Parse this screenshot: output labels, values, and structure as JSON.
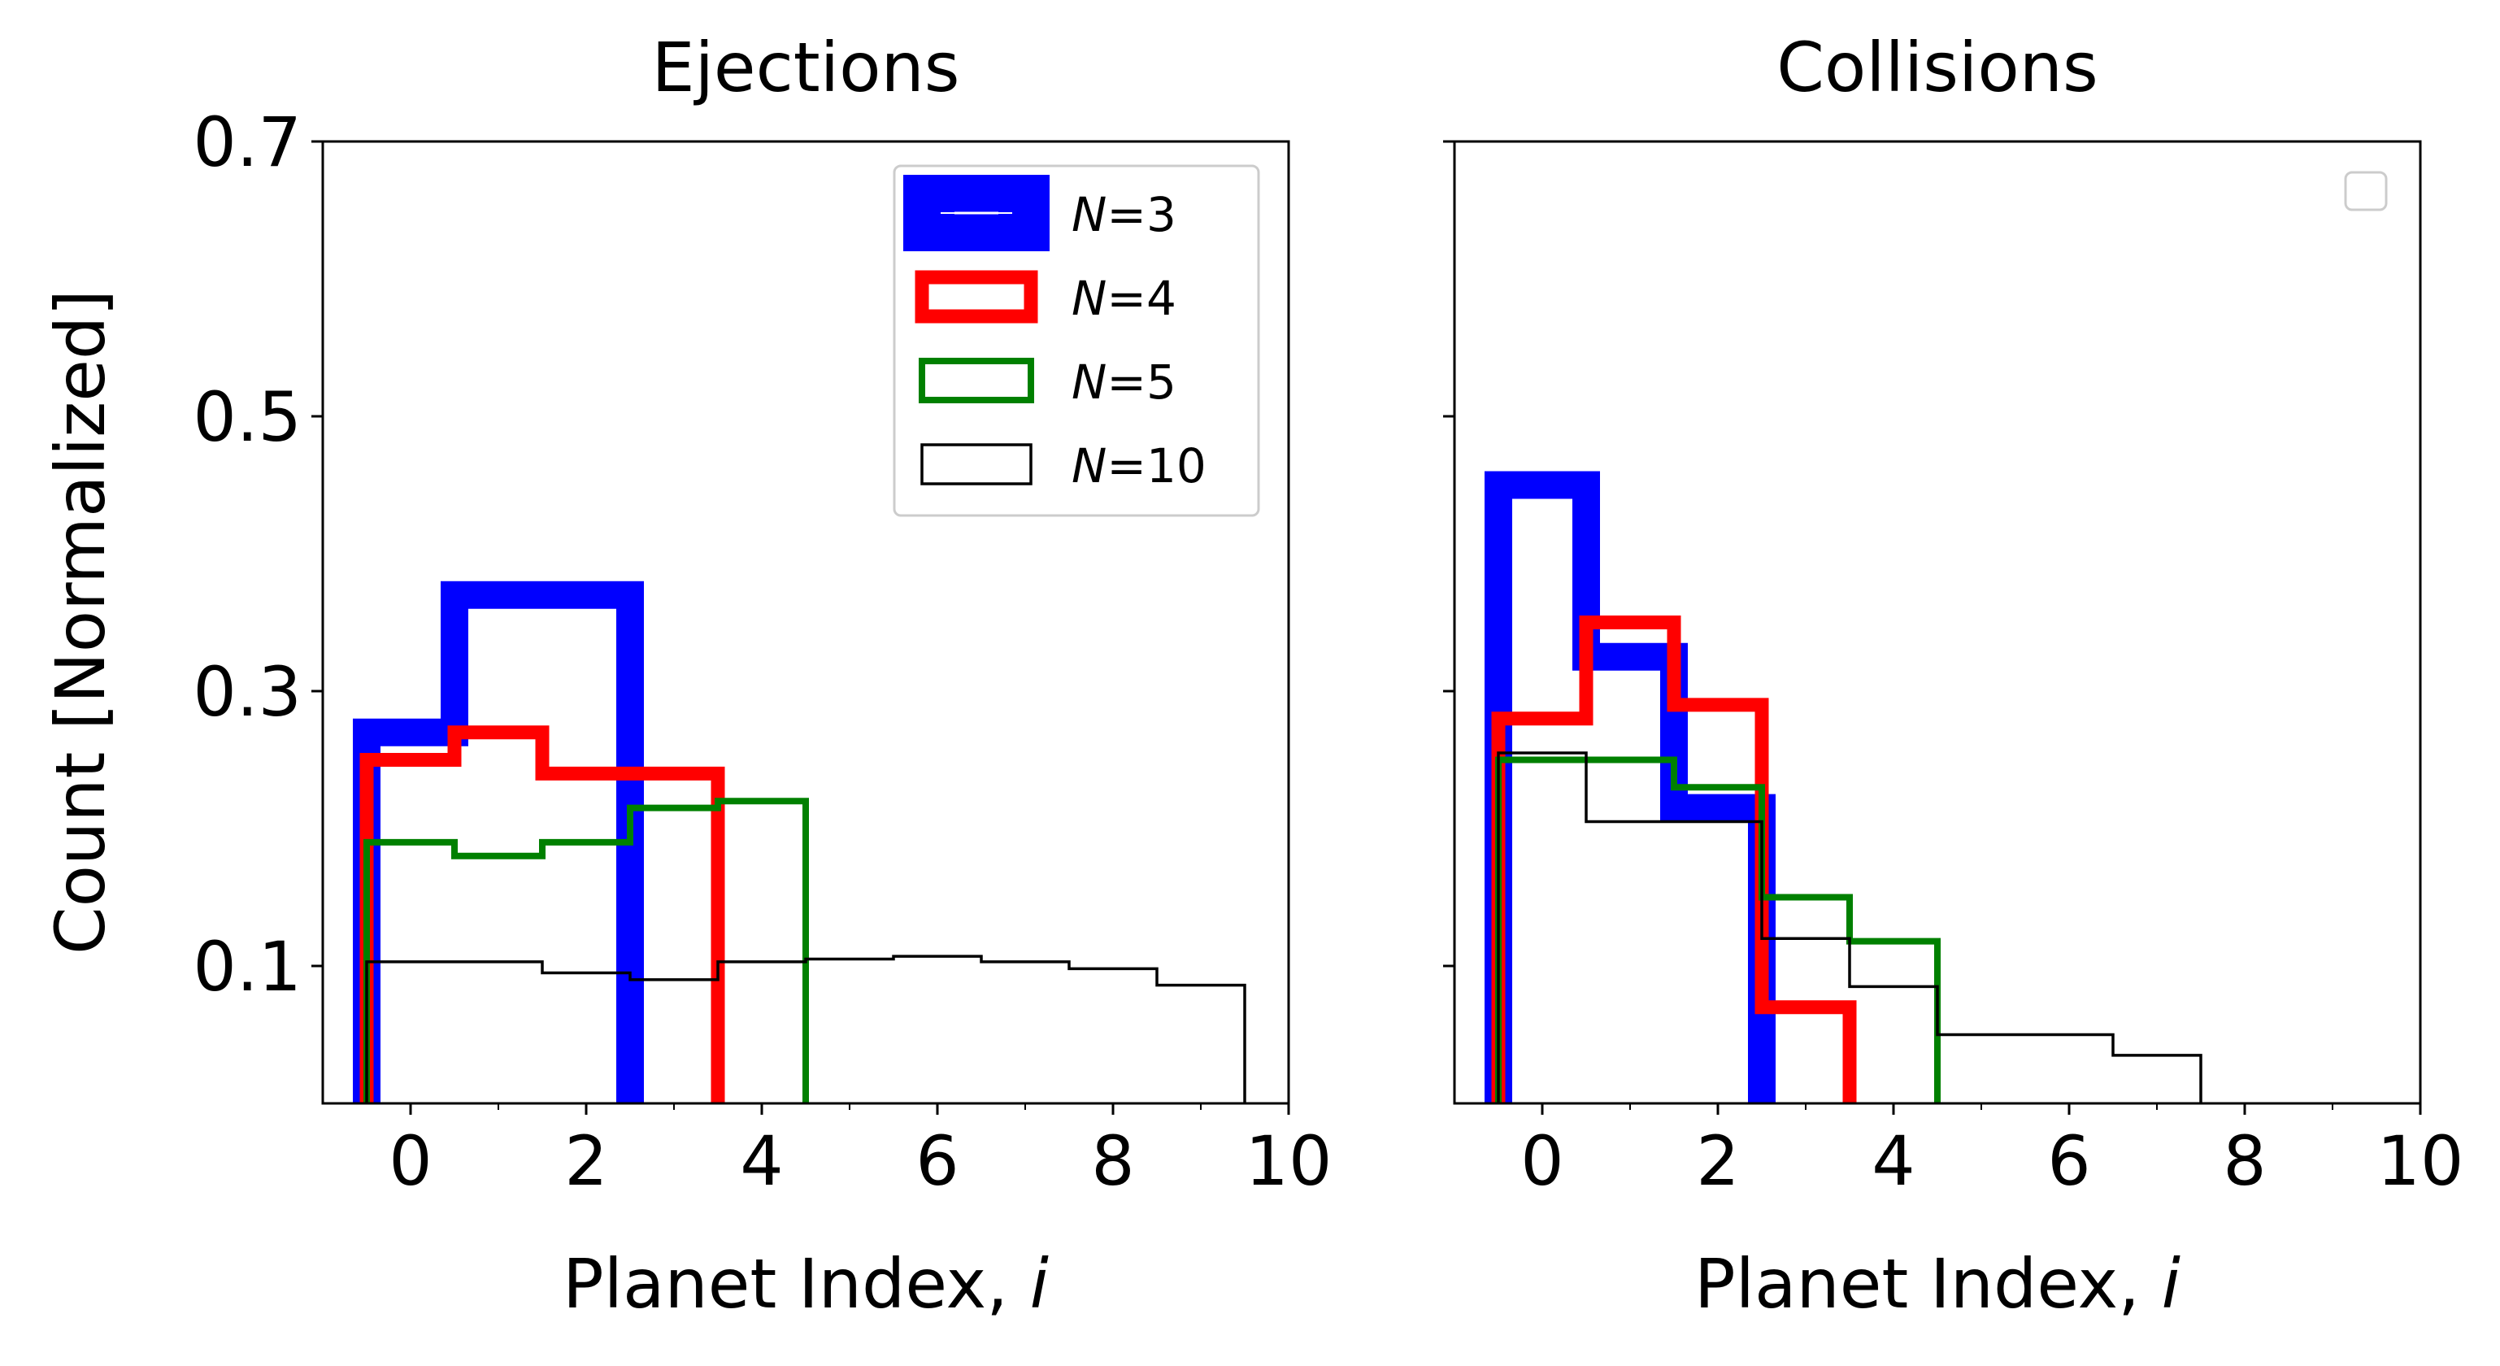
{
  "colors": {
    "N3": "#0000ff",
    "N4": "#ff0000",
    "N5": "#008000",
    "N10": "#000000",
    "frame": "#000000",
    "background": "#ffffff"
  },
  "chart_data": [
    {
      "type": "step-histogram",
      "title": "Ejections",
      "xlabel": "Planet Index, i",
      "ylabel": "Count [Normalized]",
      "xlim": [
        -1,
        10
      ],
      "ylim": [
        0,
        0.7
      ],
      "xticks": [
        0,
        2,
        4,
        6,
        8,
        10
      ],
      "xtick_labels": [
        "0",
        "2",
        "4",
        "6",
        "8",
        "10"
      ],
      "xminor_ticks": [
        1,
        3,
        5,
        7,
        9
      ],
      "yticks": [
        0.1,
        0.3,
        0.5,
        0.7
      ],
      "ytick_labels": [
        "0.1",
        "0.3",
        "0.5",
        "0.7"
      ],
      "legend": {
        "position": "upper right",
        "entries": [
          {
            "key": "N3",
            "label": "N=3"
          },
          {
            "key": "N4",
            "label": "N=4"
          },
          {
            "key": "N5",
            "label": "N=5"
          },
          {
            "key": "N10",
            "label": "N=10"
          }
        ]
      },
      "series": [
        {
          "key": "N3",
          "name": "N=3",
          "edges": [
            -0.5,
            0.5,
            1.5,
            2.5
          ],
          "values": [
            0.27,
            0.37,
            0.37
          ]
        },
        {
          "key": "N4",
          "name": "N=4",
          "edges": [
            -0.5,
            0.5,
            1.5,
            2.5,
            3.5
          ],
          "values": [
            0.25,
            0.27,
            0.24,
            0.24
          ]
        },
        {
          "key": "N5",
          "name": "N=5",
          "edges": [
            -0.5,
            0.5,
            1.5,
            2.5,
            3.5,
            4.5
          ],
          "values": [
            0.19,
            0.18,
            0.19,
            0.215,
            0.22
          ]
        },
        {
          "key": "N10",
          "name": "N=10",
          "edges": [
            -0.5,
            0.5,
            1.5,
            2.5,
            3.5,
            4.5,
            5.5,
            6.5,
            7.5,
            8.5,
            9.5
          ],
          "values": [
            0.103,
            0.103,
            0.095,
            0.09,
            0.103,
            0.105,
            0.107,
            0.103,
            0.098,
            0.086
          ]
        }
      ]
    },
    {
      "type": "step-histogram",
      "title": "Collisions",
      "xlabel": "Planet Index, i",
      "ylabel": "",
      "xlim": [
        -1,
        10
      ],
      "ylim": [
        0,
        0.7
      ],
      "xticks": [
        0,
        2,
        4,
        6,
        8,
        10
      ],
      "xtick_labels": [
        "0",
        "2",
        "4",
        "6",
        "8",
        "10"
      ],
      "xminor_ticks": [
        1,
        3,
        5,
        7,
        9
      ],
      "yticks": [
        0.1,
        0.3,
        0.5,
        0.7
      ],
      "ytick_labels": [],
      "legend": {
        "position": "upper right",
        "entries": []
      },
      "series": [
        {
          "key": "N3",
          "name": "N=3",
          "edges": [
            -0.5,
            0.5,
            1.5,
            2.5
          ],
          "values": [
            0.45,
            0.325,
            0.215
          ]
        },
        {
          "key": "N4",
          "name": "N=4",
          "edges": [
            -0.5,
            0.5,
            1.5,
            2.5,
            3.5
          ],
          "values": [
            0.28,
            0.35,
            0.29,
            0.07
          ]
        },
        {
          "key": "N5",
          "name": "N=5",
          "edges": [
            -0.5,
            0.5,
            1.5,
            2.5,
            3.5,
            4.5
          ],
          "values": [
            0.25,
            0.25,
            0.23,
            0.15,
            0.118
          ]
        },
        {
          "key": "N10",
          "name": "N=10",
          "edges": [
            -0.5,
            0.5,
            1.5,
            2.5,
            3.5,
            4.5,
            5.5,
            6.5,
            7.5
          ],
          "values": [
            0.255,
            0.205,
            0.205,
            0.12,
            0.085,
            0.05,
            0.05,
            0.035
          ]
        }
      ]
    }
  ]
}
